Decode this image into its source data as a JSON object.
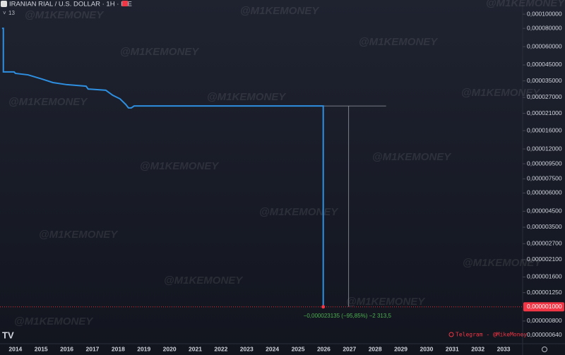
{
  "chart_data": {
    "type": "line",
    "title": "IRANIAN RIAL / U.S. DOLLAR · 1H · ICE",
    "indicator": "13",
    "log_scale": true,
    "x": [
      2013.48,
      2013.53,
      2013.53,
      2013.95,
      2014.0,
      2014.49,
      2015.04,
      2015.46,
      2016.0,
      2016.75,
      2016.83,
      2017.52,
      2017.79,
      2018.07,
      2018.29,
      2018.4,
      2018.51,
      2018.62,
      2025.98,
      2025.98
    ],
    "series": [
      {
        "name": "IRR/USD",
        "color": "#2e8fe0",
        "values": [
          8.01e-05,
          8.01e-05,
          4.03e-05,
          4.03e-05,
          3.94e-05,
          3.85e-05,
          3.6e-05,
          3.41e-05,
          3.3e-05,
          3.22e-05,
          3.08e-05,
          3.02e-05,
          2.79e-05,
          2.64e-05,
          2.42e-05,
          2.29e-05,
          2.29e-05,
          2.36e-05,
          2.36e-05,
          1e-06
        ]
      }
    ],
    "xlim": [
      2013.4,
      2033.74
    ],
    "xticks": [
      2014,
      2015,
      2016,
      2017,
      2018,
      2019,
      2020,
      2021,
      2022,
      2023,
      2024,
      2025,
      2026,
      2027,
      2028,
      2029,
      2030,
      2031,
      2032,
      2033
    ],
    "ylim": [
      5.6e-07,
      0.000125
    ],
    "yticks": [
      {
        "value": 0.0001,
        "label": "0,000100000"
      },
      {
        "value": 8e-05,
        "label": "0,000080000"
      },
      {
        "value": 6e-05,
        "label": "0,000060000"
      },
      {
        "value": 4.5e-05,
        "label": "0,000045000"
      },
      {
        "value": 3.5e-05,
        "label": "0,000035000"
      },
      {
        "value": 2.7e-05,
        "label": "0,000027000"
      },
      {
        "value": 2.1e-05,
        "label": "0,000021000"
      },
      {
        "value": 1.6e-05,
        "label": "0,000016000"
      },
      {
        "value": 1.2e-05,
        "label": "0,000012000"
      },
      {
        "value": 9.5e-06,
        "label": "0,000009500"
      },
      {
        "value": 7.5e-06,
        "label": "0,000007500"
      },
      {
        "value": 6e-06,
        "label": "0,000006000"
      },
      {
        "value": 4.5e-06,
        "label": "0,000004500"
      },
      {
        "value": 3.5e-06,
        "label": "0,000003500"
      },
      {
        "value": 2.7e-06,
        "label": "0,000002700"
      },
      {
        "value": 2.1e-06,
        "label": "0,000002100"
      },
      {
        "value": 1.6e-06,
        "label": "0,000001600"
      },
      {
        "value": 1.25e-06,
        "label": "0,000001250"
      },
      {
        "value": 1e-06,
        "label": "0,000001000"
      },
      {
        "value": 8e-07,
        "label": "0,000000800"
      },
      {
        "value": 6.4e-07,
        "label": "0,000000640"
      }
    ],
    "measure_label": "−0,000023135 (−95,85%) −2 313,5",
    "watermark": "@M1KEMONEY",
    "credit": "Telegram - @MikeMoney",
    "logo": "TV"
  }
}
